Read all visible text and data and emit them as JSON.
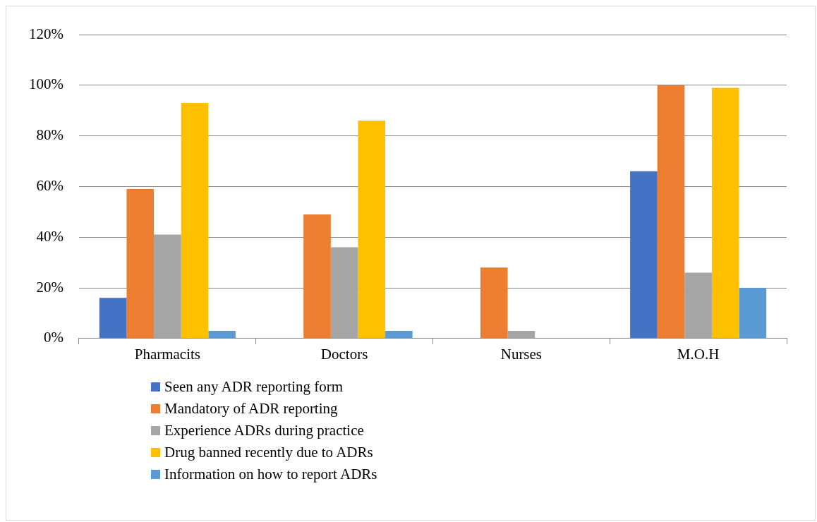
{
  "chart_data": {
    "type": "bar",
    "categories": [
      "Pharmacits",
      "Doctors",
      "Nurses",
      "M.O.H"
    ],
    "series": [
      {
        "name": "Seen any ADR reporting form",
        "color": "#4472c4",
        "values": [
          16,
          0,
          0,
          66
        ]
      },
      {
        "name": "Mandatory of ADR reporting",
        "color": "#ed7d31",
        "values": [
          59,
          49,
          28,
          100
        ]
      },
      {
        "name": "Experience ADRs during practice",
        "color": "#a5a5a5",
        "values": [
          41,
          36,
          3,
          26
        ]
      },
      {
        "name": "Drug banned recently due to ADRs",
        "color": "#ffc000",
        "values": [
          93,
          86,
          0,
          99
        ]
      },
      {
        "name": "Information on how to report ADRs",
        "color": "#5b9bd5",
        "values": [
          3,
          3,
          0,
          20
        ]
      }
    ],
    "ylim": [
      0,
      120
    ],
    "yticks": [
      {
        "value": 0,
        "label": "0%"
      },
      {
        "value": 20,
        "label": "20%"
      },
      {
        "value": 40,
        "label": "40%"
      },
      {
        "value": 60,
        "label": "60%"
      },
      {
        "value": 80,
        "label": "80%"
      },
      {
        "value": 100,
        "label": "100%"
      },
      {
        "value": 120,
        "label": "120%"
      }
    ],
    "grid": "y",
    "legend": "bottom"
  }
}
